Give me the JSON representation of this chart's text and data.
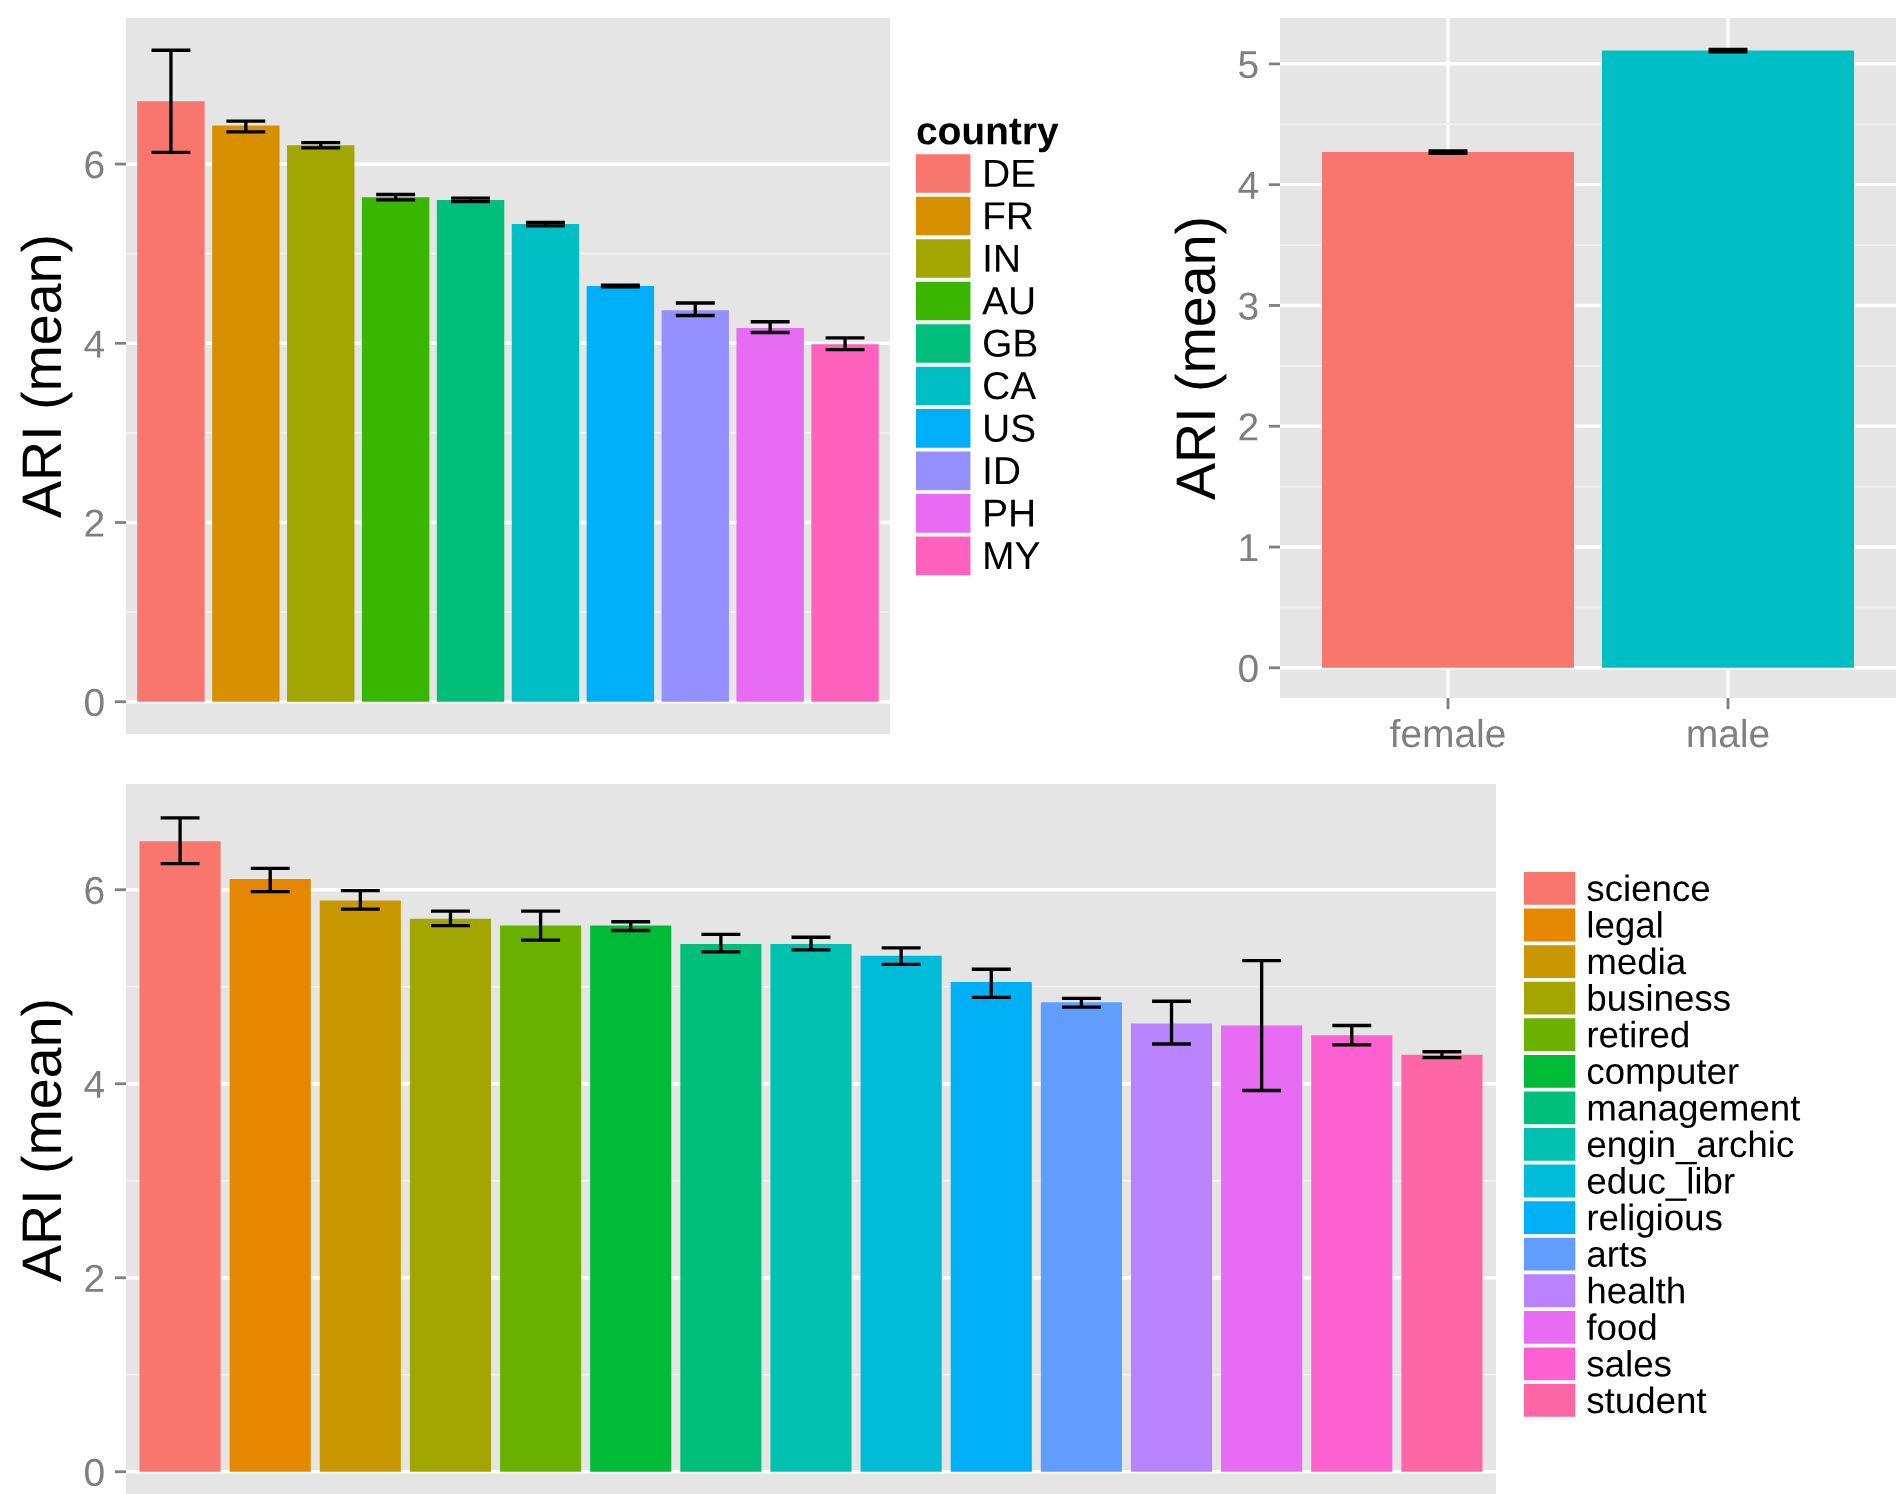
{
  "chart_data": [
    {
      "type": "bar",
      "stacked": true,
      "ylabel": "ARI (mean)",
      "legend_title": "country",
      "legend": "right",
      "grid": true,
      "tick_labels": "y",
      "ylim": [
        -0.36,
        7.63
      ],
      "yticks": [
        0,
        2,
        4,
        6
      ],
      "categories": [
        null,
        null,
        null,
        null,
        null,
        null,
        null,
        null,
        null,
        null
      ],
      "series": [
        {
          "name": "DE",
          "color": "#f8766d",
          "values": [
            6.7,
            null,
            null,
            null,
            null,
            null,
            null,
            null,
            null,
            null
          ],
          "errors": [
            [
              6.13,
              7.27
            ],
            null,
            null,
            null,
            null,
            null,
            null,
            null,
            null,
            null
          ]
        },
        {
          "name": "FR",
          "color": "#d89000",
          "values": [
            null,
            6.43,
            null,
            null,
            null,
            null,
            null,
            null,
            null,
            null
          ],
          "errors": [
            null,
            [
              6.36,
              6.48
            ],
            null,
            null,
            null,
            null,
            null,
            null,
            null,
            null
          ]
        },
        {
          "name": "IN",
          "color": "#a3a500",
          "values": [
            null,
            null,
            6.21,
            null,
            null,
            null,
            null,
            null,
            null,
            null
          ],
          "errors": [
            null,
            null,
            [
              6.18,
              6.24
            ],
            null,
            null,
            null,
            null,
            null,
            null,
            null
          ]
        },
        {
          "name": "AU",
          "color": "#39b600",
          "values": [
            null,
            null,
            null,
            5.63,
            null,
            null,
            null,
            null,
            null,
            null
          ],
          "errors": [
            null,
            null,
            null,
            [
              5.6,
              5.66
            ],
            null,
            null,
            null,
            null,
            null,
            null
          ]
        },
        {
          "name": "GB",
          "color": "#00bf7d",
          "values": [
            null,
            null,
            null,
            null,
            5.6,
            null,
            null,
            null,
            null,
            null
          ],
          "errors": [
            null,
            null,
            null,
            null,
            [
              5.58,
              5.62
            ],
            null,
            null,
            null,
            null,
            null
          ]
        },
        {
          "name": "CA",
          "color": "#00bfc4",
          "values": [
            null,
            null,
            null,
            null,
            null,
            5.33,
            null,
            null,
            null,
            null
          ],
          "errors": [
            null,
            null,
            null,
            null,
            null,
            [
              5.31,
              5.35
            ],
            null,
            null,
            null,
            null
          ]
        },
        {
          "name": "US",
          "color": "#00b0f6",
          "values": [
            null,
            null,
            null,
            null,
            null,
            null,
            4.64,
            null,
            null,
            null
          ],
          "errors": [
            null,
            null,
            null,
            null,
            null,
            null,
            [
              4.63,
              4.65
            ],
            null,
            null,
            null
          ]
        },
        {
          "name": "ID",
          "color": "#9590ff",
          "values": [
            null,
            null,
            null,
            null,
            null,
            null,
            null,
            4.37,
            null,
            null
          ],
          "errors": [
            null,
            null,
            null,
            null,
            null,
            null,
            null,
            [
              4.31,
              4.45
            ],
            null,
            null
          ]
        },
        {
          "name": "PH",
          "color": "#e76bf3",
          "values": [
            null,
            null,
            null,
            null,
            null,
            null,
            null,
            null,
            4.17,
            null
          ],
          "errors": [
            null,
            null,
            null,
            null,
            null,
            null,
            null,
            null,
            [
              4.12,
              4.24
            ],
            null
          ]
        },
        {
          "name": "MY",
          "color": "#ff62bc",
          "values": [
            null,
            null,
            null,
            null,
            null,
            null,
            null,
            null,
            null,
            3.99
          ],
          "errors": [
            null,
            null,
            null,
            null,
            null,
            null,
            null,
            null,
            null,
            [
              3.93,
              4.06
            ]
          ]
        }
      ]
    },
    {
      "type": "bar",
      "ylabel": "ARI (mean)",
      "grid": true,
      "ylim": [
        -0.25,
        5.38
      ],
      "yticks": [
        0,
        1,
        2,
        3,
        4,
        5
      ],
      "categories": [
        "female",
        "male"
      ],
      "series": [
        {
          "colors": [
            "#f8766d",
            "#00bfc4"
          ],
          "values": [
            4.27,
            5.11
          ],
          "errors": [
            [
              4.26,
              4.28
            ],
            [
              5.1,
              5.12
            ]
          ]
        }
      ]
    },
    {
      "type": "bar",
      "stacked": true,
      "ylabel": "ARI (mean)",
      "legend": "right",
      "grid": true,
      "tick_labels": "y",
      "ylim": [
        -0.25,
        7.09
      ],
      "yticks": [
        0,
        2,
        4,
        6
      ],
      "categories": [
        null,
        null,
        null,
        null,
        null,
        null,
        null,
        null,
        null,
        null,
        null,
        null,
        null,
        null,
        null
      ],
      "series": [
        {
          "name": "science",
          "color": "#f8766d",
          "values": [
            6.5,
            null,
            null,
            null,
            null,
            null,
            null,
            null,
            null,
            null,
            null,
            null,
            null,
            null,
            null
          ],
          "errors": [
            [
              6.27,
              6.74
            ],
            null,
            null,
            null,
            null,
            null,
            null,
            null,
            null,
            null,
            null,
            null,
            null,
            null,
            null
          ]
        },
        {
          "name": "legal",
          "color": "#e58700",
          "values": [
            null,
            6.11,
            null,
            null,
            null,
            null,
            null,
            null,
            null,
            null,
            null,
            null,
            null,
            null,
            null
          ],
          "errors": [
            null,
            [
              5.98,
              6.22
            ],
            null,
            null,
            null,
            null,
            null,
            null,
            null,
            null,
            null,
            null,
            null,
            null,
            null
          ]
        },
        {
          "name": "media",
          "color": "#c99800",
          "values": [
            null,
            null,
            5.89,
            null,
            null,
            null,
            null,
            null,
            null,
            null,
            null,
            null,
            null,
            null,
            null
          ],
          "errors": [
            null,
            null,
            [
              5.8,
              5.99
            ],
            null,
            null,
            null,
            null,
            null,
            null,
            null,
            null,
            null,
            null,
            null,
            null
          ]
        },
        {
          "name": "business",
          "color": "#a3a500",
          "values": [
            null,
            null,
            null,
            5.7,
            null,
            null,
            null,
            null,
            null,
            null,
            null,
            null,
            null,
            null,
            null
          ],
          "errors": [
            null,
            null,
            null,
            [
              5.63,
              5.78
            ],
            null,
            null,
            null,
            null,
            null,
            null,
            null,
            null,
            null,
            null,
            null
          ]
        },
        {
          "name": "retired",
          "color": "#6bb100",
          "values": [
            null,
            null,
            null,
            null,
            5.63,
            null,
            null,
            null,
            null,
            null,
            null,
            null,
            null,
            null,
            null
          ],
          "errors": [
            null,
            null,
            null,
            null,
            [
              5.48,
              5.78
            ],
            null,
            null,
            null,
            null,
            null,
            null,
            null,
            null,
            null,
            null
          ]
        },
        {
          "name": "computer",
          "color": "#00ba38",
          "values": [
            null,
            null,
            null,
            null,
            null,
            5.63,
            null,
            null,
            null,
            null,
            null,
            null,
            null,
            null,
            null
          ],
          "errors": [
            null,
            null,
            null,
            null,
            null,
            [
              5.58,
              5.67
            ],
            null,
            null,
            null,
            null,
            null,
            null,
            null,
            null,
            null
          ]
        },
        {
          "name": "management",
          "color": "#00bf7d",
          "values": [
            null,
            null,
            null,
            null,
            null,
            null,
            5.44,
            null,
            null,
            null,
            null,
            null,
            null,
            null,
            null
          ],
          "errors": [
            null,
            null,
            null,
            null,
            null,
            null,
            [
              5.36,
              5.54
            ],
            null,
            null,
            null,
            null,
            null,
            null,
            null,
            null
          ]
        },
        {
          "name": "engin_archic",
          "color": "#00c0af",
          "values": [
            null,
            null,
            null,
            null,
            null,
            null,
            null,
            5.44,
            null,
            null,
            null,
            null,
            null,
            null,
            null
          ],
          "errors": [
            null,
            null,
            null,
            null,
            null,
            null,
            null,
            [
              5.38,
              5.51
            ],
            null,
            null,
            null,
            null,
            null,
            null,
            null
          ]
        },
        {
          "name": "educ_libr",
          "color": "#00bcd8",
          "values": [
            null,
            null,
            null,
            null,
            null,
            null,
            null,
            null,
            5.32,
            null,
            null,
            null,
            null,
            null,
            null
          ],
          "errors": [
            null,
            null,
            null,
            null,
            null,
            null,
            null,
            null,
            [
              5.23,
              5.4
            ],
            null,
            null,
            null,
            null,
            null,
            null
          ]
        },
        {
          "name": "religious",
          "color": "#00b0f6",
          "values": [
            null,
            null,
            null,
            null,
            null,
            null,
            null,
            null,
            null,
            5.05,
            null,
            null,
            null,
            null,
            null
          ],
          "errors": [
            null,
            null,
            null,
            null,
            null,
            null,
            null,
            null,
            null,
            [
              4.89,
              5.18
            ],
            null,
            null,
            null,
            null,
            null
          ]
        },
        {
          "name": "arts",
          "color": "#619cff",
          "values": [
            null,
            null,
            null,
            null,
            null,
            null,
            null,
            null,
            null,
            null,
            4.84,
            null,
            null,
            null,
            null
          ],
          "errors": [
            null,
            null,
            null,
            null,
            null,
            null,
            null,
            null,
            null,
            null,
            [
              4.79,
              4.88
            ],
            null,
            null,
            null,
            null
          ]
        },
        {
          "name": "health",
          "color": "#b983ff",
          "values": [
            null,
            null,
            null,
            null,
            null,
            null,
            null,
            null,
            null,
            null,
            null,
            4.62,
            null,
            null,
            null
          ],
          "errors": [
            null,
            null,
            null,
            null,
            null,
            null,
            null,
            null,
            null,
            null,
            null,
            [
              4.41,
              4.85
            ],
            null,
            null,
            null
          ]
        },
        {
          "name": "food",
          "color": "#e76bf3",
          "values": [
            null,
            null,
            null,
            null,
            null,
            null,
            null,
            null,
            null,
            null,
            null,
            null,
            4.6,
            null,
            null
          ],
          "errors": [
            null,
            null,
            null,
            null,
            null,
            null,
            null,
            null,
            null,
            null,
            null,
            null,
            [
              3.93,
              5.27
            ],
            null,
            null
          ]
        },
        {
          "name": "sales",
          "color": "#fd61d1",
          "values": [
            null,
            null,
            null,
            null,
            null,
            null,
            null,
            null,
            null,
            null,
            null,
            null,
            null,
            4.5,
            null
          ],
          "errors": [
            null,
            null,
            null,
            null,
            null,
            null,
            null,
            null,
            null,
            null,
            null,
            null,
            null,
            [
              4.4,
              4.6
            ],
            null
          ]
        },
        {
          "name": "student",
          "color": "#ff67a4",
          "values": [
            null,
            null,
            null,
            null,
            null,
            null,
            null,
            null,
            null,
            null,
            null,
            null,
            null,
            null,
            4.3
          ],
          "errors": [
            null,
            null,
            null,
            null,
            null,
            null,
            null,
            null,
            null,
            null,
            null,
            null,
            null,
            null,
            [
              4.27,
              4.33
            ]
          ]
        }
      ]
    }
  ]
}
